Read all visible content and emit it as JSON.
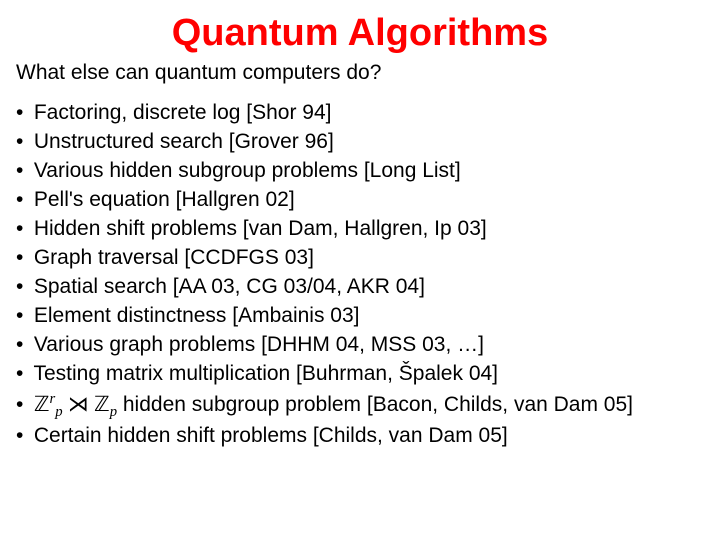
{
  "title": {
    "text": "Quantum Algorithms",
    "color": "#ff0000",
    "fontsize": 38
  },
  "subtitle": "What else can quantum computers do?",
  "bullets": [
    {
      "text": "Factoring, discrete log [Shor 94]"
    },
    {
      "text": "Unstructured search [Grover 96]"
    },
    {
      "text": "Various hidden subgroup problems [Long List]"
    },
    {
      "text": "Pell's equation [Hallgren 02]"
    },
    {
      "text": "Hidden shift problems [van Dam, Hallgren, Ip 03]"
    },
    {
      "text": "Graph traversal [CCDFGS 03]"
    },
    {
      "text": "Spatial search [AA 03, CG 03/04, AKR 04]"
    },
    {
      "text": "Element distinctness [Ambainis 03]"
    },
    {
      "text": "Various graph problems [DHHM 04, MSS 03, …]"
    },
    {
      "text": "Testing matrix multiplication [Buhrman, Špalek 04]"
    },
    {
      "math": true,
      "suffix": " hidden subgroup problem [Bacon, Childs, van Dam 05]"
    },
    {
      "text": "Certain hidden shift problems [Childs, van Dam 05]"
    }
  ],
  "math_symbols": {
    "Zp_r": "ℤ",
    "semidirect": "⋊"
  },
  "styling": {
    "body_color": "#000000",
    "bullet_fontsize": 21,
    "background": "#ffffff",
    "font_family": "Arial"
  }
}
